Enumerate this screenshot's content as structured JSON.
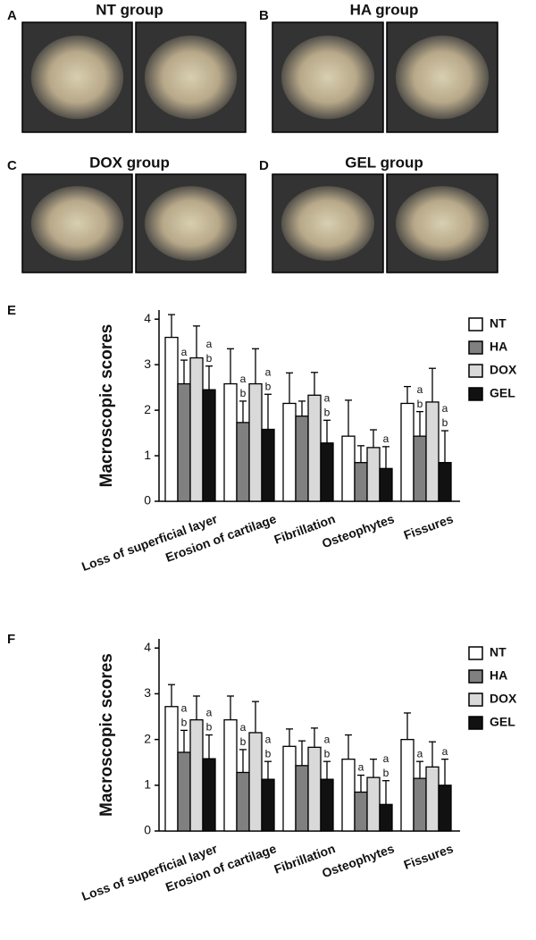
{
  "photo_panels": [
    {
      "label": "A",
      "title": "NT group"
    },
    {
      "label": "B",
      "title": "HA group"
    },
    {
      "label": "C",
      "title": "DOX group"
    },
    {
      "label": "D",
      "title": "GEL group"
    }
  ],
  "chart_data": [
    {
      "type": "bar",
      "panel_label": "E",
      "y_label": "Macroscopic scores",
      "categories": [
        "Loss of superficial layer",
        "Erosion of cartilage",
        "Fibrillation",
        "Osteophytes",
        "Fissures"
      ],
      "ylim": [
        0,
        4.2
      ],
      "yticks": [
        0,
        1,
        2,
        3,
        4
      ],
      "series": [
        {
          "name": "NT",
          "color": "#ffffff",
          "values": [
            3.6,
            2.58,
            2.15,
            1.43,
            2.15
          ],
          "errors": [
            0.5,
            0.77,
            0.67,
            0.79,
            0.37
          ],
          "annotations": [
            null,
            null,
            null,
            null,
            null
          ]
        },
        {
          "name": "HA",
          "color": "#808080",
          "values": [
            2.58,
            1.73,
            1.87,
            0.85,
            1.43
          ],
          "errors": [
            0.52,
            0.47,
            0.33,
            0.37,
            0.54
          ],
          "annotations": [
            [
              "a"
            ],
            [
              "a",
              "b"
            ],
            null,
            null,
            [
              "a",
              "b"
            ]
          ]
        },
        {
          "name": "DOX",
          "color": "#d9d9d9",
          "values": [
            3.15,
            2.58,
            2.33,
            1.18,
            2.18
          ],
          "errors": [
            0.7,
            0.77,
            0.5,
            0.39,
            0.74
          ],
          "annotations": [
            null,
            null,
            null,
            null,
            null
          ]
        },
        {
          "name": "GEL",
          "color": "#111111",
          "values": [
            2.45,
            1.58,
            1.28,
            0.72,
            0.85
          ],
          "errors": [
            0.52,
            0.77,
            0.5,
            0.48,
            0.7
          ],
          "annotations": [
            [
              "a",
              "b"
            ],
            [
              "a",
              "b"
            ],
            [
              "a",
              "b"
            ],
            [
              "a"
            ],
            [
              "a",
              "b"
            ]
          ]
        }
      ]
    },
    {
      "type": "bar",
      "panel_label": "F",
      "y_label": "Macroscopic scores",
      "categories": [
        "Loss of superficial layer",
        "Erosion of cartilage",
        "Fibrillation",
        "Osteophytes",
        "Fissures"
      ],
      "ylim": [
        0,
        4.2
      ],
      "yticks": [
        0,
        1,
        2,
        3,
        4
      ],
      "series": [
        {
          "name": "NT",
          "color": "#ffffff",
          "values": [
            2.72,
            2.43,
            1.85,
            1.57,
            2.0
          ],
          "errors": [
            0.48,
            0.52,
            0.38,
            0.53,
            0.58
          ],
          "annotations": [
            null,
            null,
            null,
            null,
            null
          ]
        },
        {
          "name": "HA",
          "color": "#808080",
          "values": [
            1.72,
            1.28,
            1.43,
            0.85,
            1.15
          ],
          "errors": [
            0.48,
            0.5,
            0.54,
            0.37,
            0.37
          ],
          "annotations": [
            [
              "a",
              "b"
            ],
            [
              "a",
              "b"
            ],
            null,
            [
              "a"
            ],
            [
              "a"
            ]
          ]
        },
        {
          "name": "DOX",
          "color": "#d9d9d9",
          "values": [
            2.43,
            2.15,
            1.83,
            1.17,
            1.4
          ],
          "errors": [
            0.52,
            0.68,
            0.42,
            0.4,
            0.55
          ],
          "annotations": [
            null,
            null,
            null,
            null,
            null
          ]
        },
        {
          "name": "GEL",
          "color": "#111111",
          "values": [
            1.58,
            1.13,
            1.13,
            0.58,
            1.0
          ],
          "errors": [
            0.52,
            0.39,
            0.39,
            0.52,
            0.57
          ],
          "annotations": [
            [
              "a",
              "b"
            ],
            [
              "a",
              "b"
            ],
            [
              "a",
              "b"
            ],
            [
              "a",
              "b"
            ],
            [
              "a"
            ]
          ]
        }
      ]
    }
  ]
}
